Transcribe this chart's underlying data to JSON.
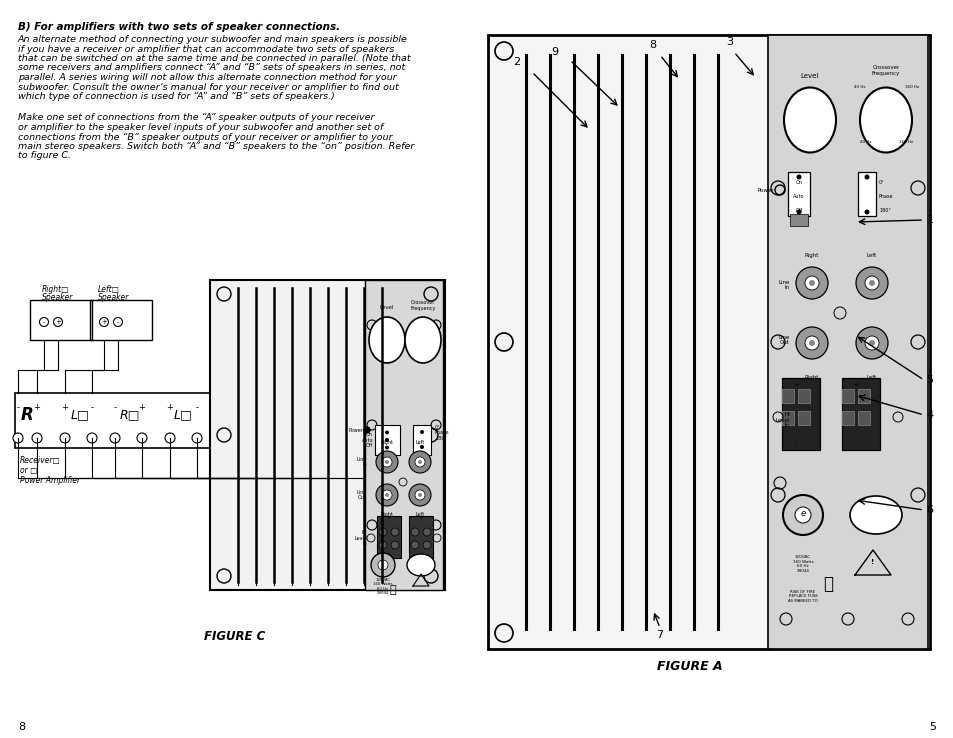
{
  "bg_color": "#ffffff",
  "page_width": 9.54,
  "page_height": 7.38,
  "text_color": "#000000",
  "title_text": "B) For amplifiers with two sets of speaker connections.",
  "para1_lines": [
    "An alternate method of connecting your subwoofer and main speakers is possible",
    "if you have a receiver or amplifier that can accommodate two sets of speakers",
    "that can be switched on at the same time and be connected in parallel. (Note that",
    "some receivers and amplifiers connect “A” and “B” sets of speakers in series, not",
    "parallel. A series wiring will not allow this alternate connection method for your",
    "subwoofer. Consult the owner’s manual for your receiver or amplifier to find out",
    "which type of connection is used for “A” and “B” sets of speakers.)"
  ],
  "para2_lines": [
    "Make one set of connections from the “A” speaker outputs of your receiver",
    "or amplifier to the speaker level inputs of your subwoofer and another set of",
    "connections from the “B” speaker outputs of your receiver or amplifier to your",
    "main stereo speakers. Switch both “A” and “B” speakers to the “on” position. Refer",
    "to figure C."
  ],
  "figure_c_label": "FIGURE C",
  "figure_a_label": "FIGURE A",
  "page_num_left": "8",
  "page_num_right": "5"
}
